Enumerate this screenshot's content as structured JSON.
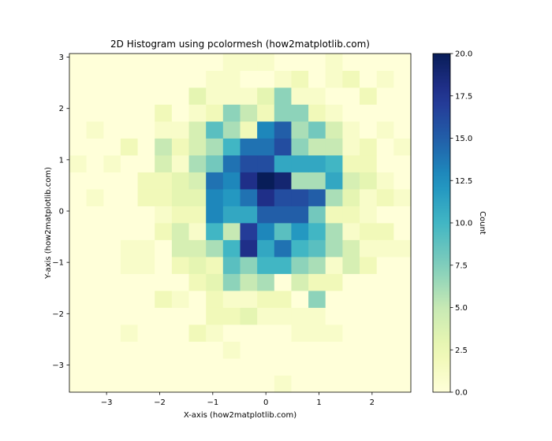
{
  "chart_data": {
    "type": "heatmap",
    "title": "2D Histogram using pcolormesh (how2matplotlib.com)",
    "xlabel": "X-axis (how2matplotlib.com)",
    "ylabel": "Y-axis (how2matplotlib.com)",
    "colorbar_label": "Count",
    "colormap": "YlGnBu",
    "xlim": [
      -3.7,
      2.73
    ],
    "ylim": [
      -3.53,
      3.07
    ],
    "x_edges": [
      -3.7,
      -3.379,
      -3.057,
      -2.736,
      -2.414,
      -2.093,
      -1.771,
      -1.45,
      -1.128,
      -0.807,
      -0.485,
      -0.164,
      0.158,
      0.479,
      0.801,
      1.122,
      1.444,
      1.765,
      2.087,
      2.408,
      2.73
    ],
    "y_edges": [
      -3.53,
      -3.2,
      -2.87,
      -2.54,
      -2.21,
      -1.88,
      -1.55,
      -1.22,
      -0.89,
      -0.56,
      -0.23,
      0.1,
      0.43,
      0.76,
      1.09,
      1.42,
      1.75,
      2.08,
      2.41,
      2.74,
      3.07
    ],
    "counts": [
      [
        0,
        0,
        0,
        0,
        0,
        0,
        0,
        0,
        0,
        0,
        0,
        0,
        1,
        0,
        0,
        0,
        0,
        0,
        0,
        0
      ],
      [
        0,
        0,
        0,
        0,
        0,
        0,
        0,
        0,
        0,
        0,
        0,
        0,
        0,
        0,
        0,
        0,
        0,
        0,
        0,
        0
      ],
      [
        0,
        0,
        0,
        0,
        0,
        0,
        0,
        0,
        0,
        1,
        0,
        0,
        0,
        0,
        0,
        0,
        0,
        0,
        0,
        0
      ],
      [
        0,
        0,
        0,
        1,
        0,
        0,
        0,
        2,
        1,
        0,
        0,
        0,
        0,
        1,
        1,
        1,
        0,
        0,
        0,
        0
      ],
      [
        0,
        0,
        0,
        0,
        0,
        0,
        0,
        0,
        2,
        2,
        3,
        1,
        1,
        1,
        1,
        0,
        0,
        0,
        0,
        0
      ],
      [
        0,
        0,
        0,
        0,
        0,
        2,
        1,
        0,
        2,
        1,
        1,
        2,
        2,
        0,
        7,
        0,
        0,
        0,
        0,
        0
      ],
      [
        0,
        0,
        0,
        0,
        0,
        0,
        0,
        2,
        3,
        7,
        5,
        6,
        0,
        4,
        2,
        2,
        0,
        0,
        0,
        0
      ],
      [
        0,
        0,
        0,
        1,
        1,
        0,
        2,
        3,
        2,
        9,
        7,
        10,
        10,
        7,
        6,
        1,
        4,
        2,
        0,
        0
      ],
      [
        0,
        0,
        0,
        1,
        1,
        0,
        4,
        4,
        6,
        10,
        18,
        11,
        14,
        10,
        9,
        6,
        4,
        1,
        1,
        1
      ],
      [
        0,
        0,
        0,
        0,
        0,
        2,
        4,
        1,
        10,
        5,
        17,
        13,
        9,
        12,
        10,
        6,
        1,
        2,
        2,
        0
      ],
      [
        0,
        0,
        0,
        0,
        0,
        1,
        2,
        2,
        13,
        11,
        11,
        15,
        15,
        15,
        8,
        2,
        2,
        1,
        0,
        0
      ],
      [
        0,
        1,
        0,
        0,
        2,
        2,
        3,
        3,
        13,
        12,
        14,
        18,
        16,
        16,
        15,
        6,
        3,
        1,
        2,
        1
      ],
      [
        0,
        0,
        0,
        0,
        2,
        2,
        3,
        4,
        14,
        13,
        18,
        20,
        19,
        6,
        6,
        11,
        4,
        3,
        1,
        0
      ],
      [
        1,
        0,
        1,
        0,
        0,
        4,
        1,
        6,
        8,
        14,
        16,
        16,
        11,
        11,
        11,
        10,
        2,
        2,
        0,
        0
      ],
      [
        0,
        0,
        0,
        2,
        0,
        5,
        2,
        4,
        6,
        10,
        14,
        14,
        16,
        7,
        5,
        5,
        1,
        2,
        0,
        1
      ],
      [
        0,
        1,
        0,
        0,
        0,
        1,
        1,
        4,
        9,
        6,
        2,
        13,
        15,
        6,
        8,
        4,
        1,
        0,
        1,
        0
      ],
      [
        0,
        0,
        0,
        0,
        0,
        2,
        0,
        1,
        2,
        7,
        5,
        2,
        7,
        7,
        2,
        1,
        0,
        0,
        0,
        0
      ],
      [
        0,
        0,
        0,
        0,
        0,
        0,
        0,
        3,
        1,
        1,
        1,
        3,
        7,
        1,
        1,
        0,
        0,
        2,
        0,
        0
      ],
      [
        0,
        0,
        0,
        0,
        0,
        0,
        0,
        0,
        1,
        1,
        0,
        0,
        1,
        2,
        0,
        1,
        2,
        0,
        1,
        0
      ],
      [
        0,
        0,
        0,
        0,
        0,
        0,
        0,
        0,
        0,
        1,
        1,
        1,
        0,
        0,
        0,
        1,
        0,
        0,
        0,
        0
      ]
    ],
    "xticks": [
      -3,
      -2,
      -1,
      0,
      1,
      2
    ],
    "yticks": [
      -3,
      -2,
      -1,
      0,
      1,
      2,
      3
    ],
    "colorbar_range": [
      0,
      20
    ],
    "colorbar_ticks": [
      "0.0",
      "2.5",
      "5.0",
      "7.5",
      "10.0",
      "12.5",
      "15.0",
      "17.5",
      "20.0"
    ],
    "grid": false,
    "legend": "none"
  }
}
